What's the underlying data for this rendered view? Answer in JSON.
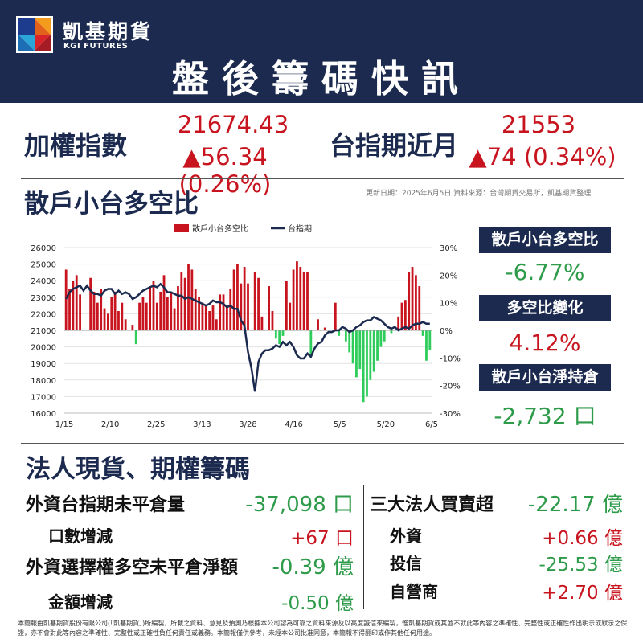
{
  "header": {
    "brand_cn": "凱基期貨",
    "brand_en": "KGI FUTURES",
    "title": "盤後籌碼快訊"
  },
  "indices": {
    "taiex_label": "加權指數",
    "taiex_value": "21674.43",
    "taiex_change": "▲56.34 (0.26%)",
    "txf_label": "台指期近月",
    "txf_value": "21553",
    "txf_change": "▲74 (0.34%)"
  },
  "section1": {
    "title": "散戶小台多空比",
    "source_note": "更新日期：2025年6月5日 資料來源：台灣期貨交易所，凱基期貨整理"
  },
  "kpis": [
    {
      "label": "散戶小台多空比",
      "value": "-6.77%",
      "color": "#2e9b4a"
    },
    {
      "label": "多空比變化",
      "value": "4.12%",
      "color": "#c8141e"
    },
    {
      "label": "散戶小台淨持倉",
      "value": "-2,732 口",
      "color": "#2e9b4a"
    }
  ],
  "chart_data": {
    "type": "bar+line",
    "title": "",
    "legend": [
      "散戶小台多空比",
      "台指期"
    ],
    "legend_position": "top-center",
    "x_ticks": [
      "1/15",
      "2/10",
      "2/25",
      "3/13",
      "3/28",
      "4/16",
      "5/5",
      "5/20",
      "6/5"
    ],
    "y_left": {
      "min": 16000,
      "max": 26000,
      "ticks": [
        16000,
        17000,
        18000,
        19000,
        20000,
        21000,
        22000,
        23000,
        24000,
        25000,
        26000
      ]
    },
    "y_right": {
      "min": -30,
      "max": 30,
      "unit": "%",
      "ticks": [
        "30%",
        "20%",
        "10%",
        "0%",
        "-10%",
        "-20%",
        "-30%"
      ]
    },
    "bar_colors": {
      "positive": "#c8141e",
      "negative": "#2ecc5a"
    },
    "line_color": "#1b2a4e",
    "series": [
      {
        "name": "散戶小台多空比",
        "values": [
          22,
          15,
          18,
          20,
          13,
          0,
          0,
          19,
          14,
          10,
          15,
          8,
          6,
          12,
          14,
          7,
          10,
          4,
          0,
          2,
          -5,
          10,
          12,
          10,
          16,
          18,
          10,
          14,
          20,
          12,
          14,
          8,
          16,
          21,
          19,
          24,
          22,
          15,
          12,
          10,
          9,
          7,
          9,
          4,
          13,
          13,
          9,
          15,
          22,
          24,
          17,
          23,
          17,
          0,
          21,
          19,
          5,
          0,
          16,
          7,
          -3,
          -5,
          -2,
          18,
          10,
          22,
          25,
          23,
          21,
          21,
          -9,
          0,
          4,
          0,
          1,
          0,
          0,
          10,
          -2,
          0,
          -4,
          -8,
          -12,
          -17,
          -14,
          -26,
          -24,
          -18,
          -15,
          -11,
          -6,
          -4,
          0,
          -1,
          0,
          5,
          10,
          11,
          21,
          23,
          20,
          16,
          -2,
          -11,
          -7
        ]
      },
      {
        "name": "台指期",
        "values": [
          22900,
          23300,
          23500,
          23600,
          23700,
          23400,
          23700,
          23400,
          23200,
          23200,
          23100,
          23400,
          23500,
          23500,
          23200,
          23400,
          23200,
          23300,
          23200,
          22900,
          23000,
          23200,
          23400,
          23500,
          23600,
          23700,
          23600,
          23800,
          23600,
          23300,
          23300,
          23200,
          23100,
          23100,
          22900,
          23000,
          22900,
          22800,
          22700,
          22600,
          22500,
          22600,
          22800,
          22700,
          22700,
          22600,
          22400,
          22500,
          22300,
          22300,
          21600,
          21300,
          19700,
          18700,
          17300,
          19100,
          19600,
          19800,
          19800,
          19900,
          20100,
          20000,
          20300,
          20100,
          20300,
          20000,
          19500,
          19300,
          19300,
          19600,
          19400,
          19900,
          20200,
          20300,
          20700,
          20900,
          20900,
          21000,
          21000,
          21200,
          21100,
          20900,
          21000,
          21200,
          21300,
          21500,
          21600,
          21600,
          21800,
          21700,
          21600,
          21400,
          21200,
          21100,
          21200,
          21000,
          21100,
          21200,
          21100,
          21300,
          21400,
          21400,
          21500,
          21400,
          21400
        ]
      }
    ]
  },
  "section2": {
    "title": "法人現貨、期權籌碼",
    "left_rows": [
      {
        "label": "外資台指期未平倉量",
        "value": "-37,098 口",
        "color": "#2e9b4a"
      },
      {
        "label": "口數增減",
        "value": "+67 口",
        "color": "#c8141e"
      },
      {
        "label": "外資選擇權多空未平倉淨額",
        "value": "-0.39 億",
        "color": "#2e9b4a"
      },
      {
        "label": "金額增減",
        "value": "-0.50 億",
        "color": "#2e9b4a"
      }
    ],
    "right_rows": [
      {
        "label": "三大法人買賣超",
        "value": "-22.17 億",
        "color": "#2e9b4a"
      },
      {
        "label": "外資",
        "value": "+0.66 億",
        "color": "#c8141e"
      },
      {
        "label": "投信",
        "value": "-25.53 億",
        "color": "#2e9b4a"
      },
      {
        "label": "自營商",
        "value": "+2.70 億",
        "color": "#c8141e"
      }
    ]
  },
  "disclaimer": "本簡報由凱基期貨股份有限公司(「凱基期貨」)所編製，所載之資料、意見及預測乃根據本公司認為可靠之資料來源及以高度誠信來編製，惟凱基期貨或其並不就此等內容之準確性、完整性或正確性作出明示或默示之保證，亦不會對此等內容之準確性、完整性或正確性負任何責任或義務。本簡報僅供參考，未經本公司批准同意，本簡報不得翻印或作其他任何用途。"
}
